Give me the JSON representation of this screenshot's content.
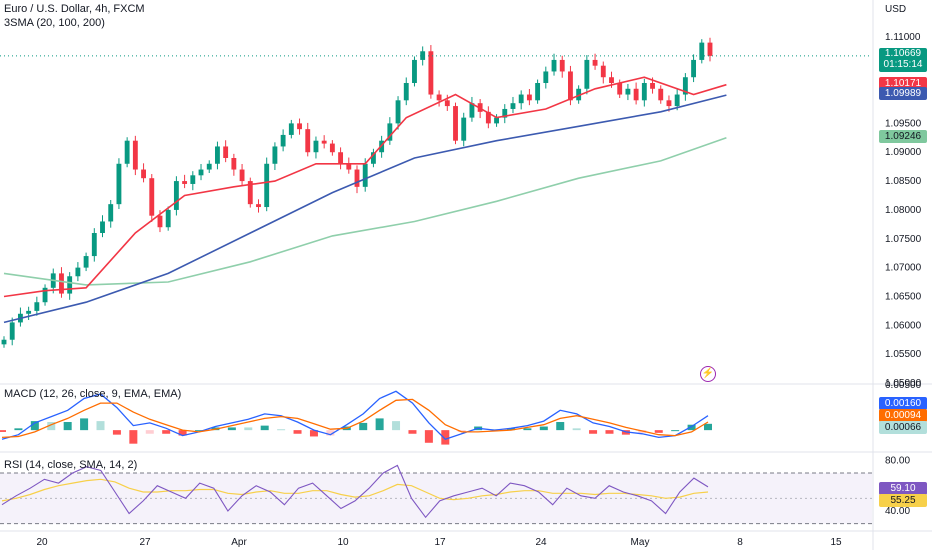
{
  "header": {
    "symbol_line": "Euro / U.S. Dollar, 4h, FXCM",
    "indicator_line": "3SMA (20, 100, 200)"
  },
  "currency_label": "USD",
  "macd_title": "MACD (12, 26, close, 9, EMA, EMA)",
  "rsi_title": "RSI (14, close, SMA, 14, 2)",
  "price_badges": {
    "last": "1.10669",
    "countdown": "01:15:14",
    "sma20": "1.10171",
    "sma100": "1.09989",
    "sma200": "1.09246"
  },
  "macd_badges": {
    "macd": "0.00160",
    "signal": "0.00094",
    "hist": "0.00066"
  },
  "rsi_badges": {
    "rsi": "59.10",
    "rsi_ma": "55.25"
  },
  "colors": {
    "up": "#089981",
    "down": "#f23645",
    "sma20": "#f23645",
    "sma100": "#3c5ab0",
    "sma200": "#8fcfab",
    "macd": "#2962ff",
    "signal": "#ff6d00",
    "rsi": "#7e57c2",
    "rsi_ma": "#f7d04a"
  },
  "chart_data": [
    {
      "type": "candlestick",
      "title": "Euro / U.S. Dollar, 4h, FXCM",
      "ylabel": "USD",
      "ylim": [
        1.05,
        1.115
      ],
      "y_ticks": [
        "1.11000",
        "1.10500",
        "1.10000",
        "1.09500",
        "1.09000",
        "1.08500",
        "1.08000",
        "1.07500",
        "1.07000",
        "1.06500",
        "1.06000",
        "1.05500",
        "1.05000"
      ],
      "x_ticks": [
        "20",
        "27",
        "Apr",
        "10",
        "17",
        "24",
        "May",
        "8",
        "15"
      ],
      "close_path": [
        1.0575,
        1.0605,
        1.062,
        1.0625,
        1.064,
        1.0665,
        1.069,
        1.0655,
        1.0685,
        1.07,
        1.072,
        1.076,
        1.078,
        1.081,
        1.088,
        1.092,
        1.087,
        1.0855,
        1.079,
        1.077,
        1.08,
        1.085,
        1.0845,
        1.086,
        1.087,
        1.088,
        1.091,
        1.089,
        1.087,
        1.085,
        1.081,
        1.0805,
        1.088,
        1.091,
        1.093,
        1.095,
        1.094,
        1.09,
        1.092,
        1.0915,
        1.09,
        1.088,
        1.087,
        1.084,
        1.088,
        1.09,
        1.092,
        1.095,
        1.099,
        1.102,
        1.106,
        1.1075,
        1.1,
        1.099,
        1.098,
        1.092,
        1.096,
        1.0985,
        1.097,
        1.095,
        1.096,
        1.0975,
        1.0985,
        1.1,
        1.099,
        1.102,
        1.104,
        1.106,
        1.104,
        1.099,
        1.101,
        1.106,
        1.105,
        1.103,
        1.102,
        1.1,
        1.101,
        1.099,
        1.102,
        1.101,
        1.099,
        1.098,
        1.1,
        1.103,
        1.106,
        1.109,
        1.1067
      ],
      "sma20": [
        [
          0,
          1.065
        ],
        [
          5,
          1.066
        ],
        [
          10,
          1.0665
        ],
        [
          16,
          1.076
        ],
        [
          22,
          1.0825
        ],
        [
          28,
          1.084
        ],
        [
          33,
          1.085
        ],
        [
          38,
          1.088
        ],
        [
          44,
          1.088
        ],
        [
          49,
          1.096
        ],
        [
          55,
          1.1
        ],
        [
          60,
          1.096
        ],
        [
          66,
          1.0975
        ],
        [
          72,
          1.101
        ],
        [
          78,
          1.103
        ],
        [
          84,
          1.1
        ],
        [
          88,
          1.1017
        ]
      ],
      "sma100": [
        [
          0,
          1.0605
        ],
        [
          10,
          1.064
        ],
        [
          20,
          1.069
        ],
        [
          30,
          1.076
        ],
        [
          40,
          1.083
        ],
        [
          50,
          1.089
        ],
        [
          60,
          1.092
        ],
        [
          70,
          1.0945
        ],
        [
          80,
          1.097
        ],
        [
          88,
          1.0999
        ]
      ],
      "sma200": [
        [
          0,
          1.069
        ],
        [
          10,
          1.067
        ],
        [
          20,
          1.0675
        ],
        [
          30,
          1.071
        ],
        [
          40,
          1.0755
        ],
        [
          50,
          1.078
        ],
        [
          60,
          1.0815
        ],
        [
          70,
          1.0855
        ],
        [
          80,
          1.0885
        ],
        [
          88,
          1.0925
        ]
      ]
    },
    {
      "type": "line",
      "title": "MACD (12, 26, close, 9, EMA, EMA)",
      "ylim": [
        -0.0022,
        0.005
      ],
      "y_ticks": [
        "0.00500"
      ],
      "series": [
        {
          "name": "MACD",
          "values": [
            -0.001,
            -0.0005,
            0.0008,
            0.0015,
            0.0022,
            0.0035,
            0.004,
            0.0025,
            0.0005,
            0.0008,
            0.0002,
            -0.0006,
            -0.0002,
            0.0004,
            0.0008,
            0.0012,
            0.0018,
            0.0016,
            0.0009,
            0.0,
            -0.0005,
            0.0006,
            0.0018,
            0.0035,
            0.0043,
            0.003,
            0.0008,
            -0.001,
            -0.0004,
            0.0002,
            0.0,
            0.0002,
            0.0005,
            0.001,
            0.0022,
            0.0018,
            0.0008,
            0.0004,
            -0.0002,
            -0.0004,
            -0.0008,
            -0.0006,
            0.0004,
            0.0016
          ]
        },
        {
          "name": "Signal",
          "values": [
            -0.0008,
            -0.0007,
            -0.0002,
            0.0006,
            0.0013,
            0.0022,
            0.003,
            0.003,
            0.002,
            0.0012,
            0.0006,
            0.0,
            -0.0002,
            0.0001,
            0.0005,
            0.0009,
            0.0013,
            0.0015,
            0.0013,
            0.0007,
            0.0001,
            0.0002,
            0.001,
            0.0022,
            0.0033,
            0.0034,
            0.0022,
            0.0006,
            -0.0002,
            -0.0002,
            -0.0001,
            0.0,
            0.0003,
            0.0006,
            0.0013,
            0.0016,
            0.0012,
            0.0008,
            0.0003,
            -0.0001,
            -0.0005,
            -0.0006,
            -0.0002,
            0.0009
          ]
        }
      ]
    },
    {
      "type": "line",
      "title": "RSI (14, close, SMA, 14, 2)",
      "ylim": [
        25,
        85
      ],
      "y_ticks": [
        "80.00",
        "40.00"
      ],
      "bands": [
        70,
        30
      ],
      "series": [
        {
          "name": "RSI",
          "values": [
            45,
            52,
            58,
            65,
            62,
            70,
            75,
            72,
            55,
            38,
            48,
            60,
            55,
            50,
            62,
            58,
            40,
            52,
            60,
            55,
            45,
            58,
            62,
            52,
            42,
            48,
            58,
            70,
            76,
            50,
            35,
            48,
            52,
            55,
            58,
            52,
            62,
            60,
            55,
            45,
            58,
            52,
            50,
            60,
            55,
            52,
            48,
            38,
            55,
            66,
            59
          ]
        },
        {
          "name": "RSI MA",
          "values": [
            48,
            50,
            53,
            57,
            60,
            62,
            64,
            65,
            63,
            58,
            55,
            55,
            56,
            56,
            57,
            57,
            54,
            53,
            55,
            56,
            54,
            54,
            56,
            56,
            53,
            51,
            52,
            56,
            61,
            60,
            55,
            50,
            49,
            50,
            52,
            53,
            55,
            56,
            56,
            54,
            54,
            54,
            53,
            54,
            54,
            53,
            52,
            50,
            51,
            54,
            55
          ]
        }
      ]
    }
  ]
}
